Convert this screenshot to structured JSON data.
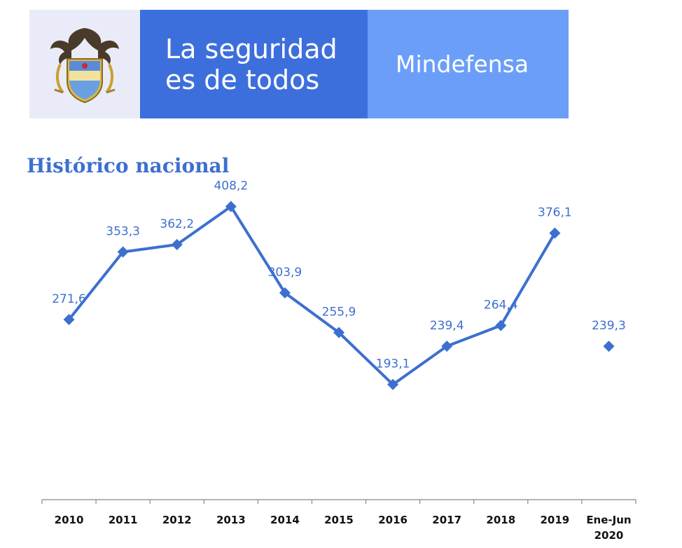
{
  "banner": {
    "slogan_line1": "La seguridad",
    "slogan_line2": "es de todos",
    "brand": "Mindefensa",
    "seal_icon": "colombia-coat-of-arms-icon",
    "colors": {
      "seal_bg": "#e9ebf8",
      "slogan_bg": "#3d6fdc",
      "brand_bg": "#6b9ef8"
    }
  },
  "chart_data": {
    "type": "line",
    "title": "Histórico nacional",
    "categories": [
      "2010",
      "2011",
      "2012",
      "2013",
      "2014",
      "2015",
      "2016",
      "2017",
      "2018",
      "2019",
      "Ene-Jun 2020"
    ],
    "category_lines": [
      [
        "2010"
      ],
      [
        "2011"
      ],
      [
        "2012"
      ],
      [
        "2013"
      ],
      [
        "2014"
      ],
      [
        "2015"
      ],
      [
        "2016"
      ],
      [
        "2017"
      ],
      [
        "2018"
      ],
      [
        "2019"
      ],
      [
        "Ene-Jun",
        "2020"
      ]
    ],
    "values": [
      271.6,
      353.3,
      362.2,
      408.2,
      303.9,
      255.9,
      193.1,
      239.4,
      264.4,
      376.1,
      239.3
    ],
    "labels": [
      "271,6",
      "353,3",
      "362,2",
      "408,2",
      "303,9",
      "255,9",
      "193,1",
      "239,4",
      "264,4",
      "376,1",
      "239,3"
    ],
    "connected_through_index": 9,
    "marker": "diamond",
    "color": "#3d6fcf",
    "xlabel": "",
    "ylabel": "",
    "grid": false,
    "y_axis_visible": false
  }
}
